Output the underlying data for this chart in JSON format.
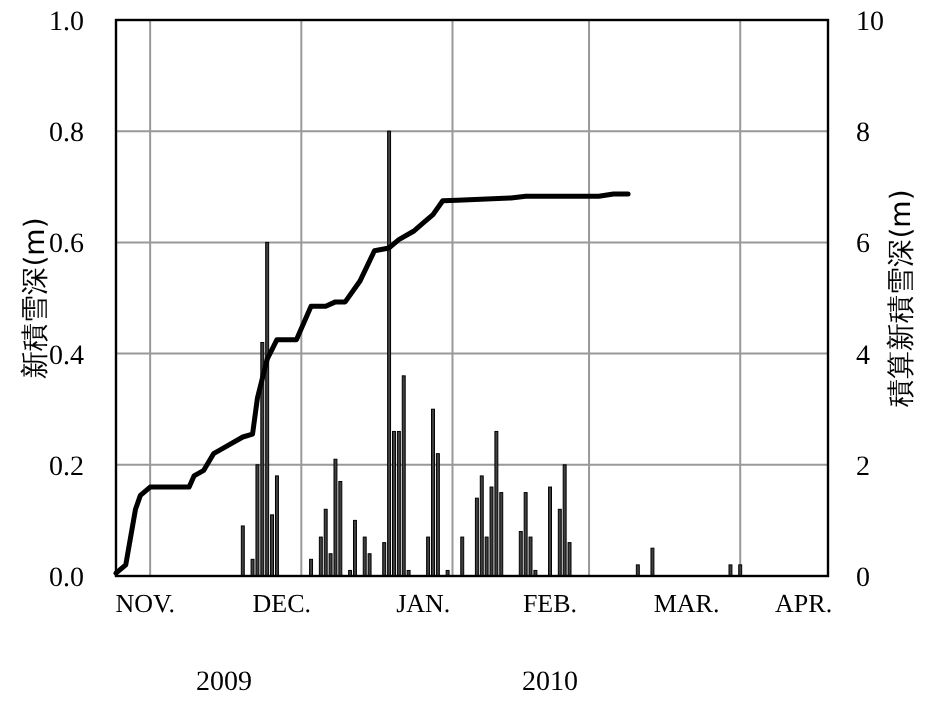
{
  "chart_data": {
    "type": "bar",
    "ylabel": "新積雪深(m)",
    "y2label": "積算新積雪深(m)",
    "annotations": [
      "2009",
      "2010"
    ],
    "xlim": [
      "2009-11-24",
      "2010-04-19"
    ],
    "xticks": [
      {
        "value": "2009-11-30",
        "label": "NOV."
      },
      {
        "value": "2009-12-28",
        "label": "DEC."
      },
      {
        "value": "2010-01-26",
        "label": "JAN."
      },
      {
        "value": "2010-02-21",
        "label": "FEB."
      },
      {
        "value": "2010-03-21",
        "label": "MAR."
      },
      {
        "value": "2010-04-14",
        "label": "APR."
      },
      {
        "value": "2009-12-01",
        "label": null
      },
      {
        "value": "2010-01-01",
        "label": null
      },
      {
        "value": "2010-02-01",
        "label": null
      },
      {
        "value": "2010-03-01",
        "label": null
      },
      {
        "value": "2010-04-01",
        "label": null
      }
    ],
    "ylim": [
      0,
      1
    ],
    "yticks": [
      {
        "value": 0,
        "label": "0.0"
      },
      {
        "value": 0.2,
        "label": "0.2"
      },
      {
        "value": 0.4,
        "label": "0.4"
      },
      {
        "value": 0.6,
        "label": "0.6"
      },
      {
        "value": 0.8,
        "label": "0.8"
      },
      {
        "value": 1,
        "label": "1.0"
      }
    ],
    "y2lim": [
      0,
      10
    ],
    "y2ticks": [
      0,
      2,
      4,
      6,
      8,
      10
    ],
    "grid": true,
    "series": [
      {
        "color": "#404040",
        "x": [
          "2009-12-20",
          "2009-12-22",
          "2009-12-23",
          "2009-12-24",
          "2009-12-25",
          "2009-12-26",
          "2009-12-27",
          "2010-01-03",
          "2010-01-05",
          "2010-01-06",
          "2010-01-07",
          "2010-01-08",
          "2010-01-09",
          "2010-01-11",
          "2010-01-12",
          "2010-01-14",
          "2010-01-15",
          "2010-01-18",
          "2010-01-19",
          "2010-01-20",
          "2010-01-21",
          "2010-01-22",
          "2010-01-23",
          "2010-01-27",
          "2010-01-28",
          "2010-01-29",
          "2010-01-31",
          "2010-02-03",
          "2010-02-06",
          "2010-02-07",
          "2010-02-08",
          "2010-02-09",
          "2010-02-10",
          "2010-02-11",
          "2010-02-15",
          "2010-02-16",
          "2010-02-17",
          "2010-02-18",
          "2010-02-21",
          "2010-02-23",
          "2010-02-24",
          "2010-02-25",
          "2010-03-11",
          "2010-03-14",
          "2010-03-30",
          "2010-04-01"
        ],
        "values": [
          0.09,
          0.03,
          0.2,
          0.42,
          0.6,
          0.11,
          0.18,
          0.03,
          0.07,
          0.12,
          0.04,
          0.21,
          0.17,
          0.01,
          0.1,
          0.07,
          0.04,
          0.06,
          0.8,
          0.26,
          0.26,
          0.36,
          0.01,
          0.07,
          0.3,
          0.22,
          0.01,
          0.07,
          0.14,
          0.18,
          0.07,
          0.16,
          0.26,
          0.15,
          0.08,
          0.15,
          0.07,
          0.01,
          0.16,
          0.12,
          0.2,
          0.06,
          0.02,
          0.05,
          0.02,
          0.02
        ]
      },
      {
        "type": "line",
        "axis": "y2",
        "color": "#000000",
        "x": [
          "2009-11-24",
          "2009-11-26",
          "2009-11-28",
          "2009-11-29",
          "2009-12-01",
          "2009-12-09",
          "2009-12-10",
          "2009-12-12",
          "2009-12-14",
          "2009-12-16",
          "2009-12-20",
          "2009-12-22",
          "2009-12-23",
          "2009-12-25",
          "2009-12-27",
          "2009-12-31",
          "2010-01-03",
          "2010-01-06",
          "2010-01-08",
          "2010-01-10",
          "2010-01-13",
          "2010-01-16",
          "2010-01-19",
          "2010-01-21",
          "2010-01-24",
          "2010-01-26",
          "2010-01-28",
          "2010-01-30",
          "2010-02-02",
          "2010-02-13",
          "2010-02-16",
          "2010-03-03",
          "2010-03-06",
          "2010-03-09"
        ],
        "values": [
          0.05,
          0.2,
          1.2,
          1.45,
          1.6,
          1.6,
          1.8,
          1.9,
          2.2,
          2.3,
          2.5,
          2.55,
          3.2,
          3.9,
          4.25,
          4.25,
          4.85,
          4.85,
          4.93,
          4.93,
          5.3,
          5.85,
          5.9,
          6.05,
          6.2,
          6.35,
          6.5,
          6.75,
          6.76,
          6.8,
          6.83,
          6.83,
          6.87,
          6.87
        ]
      }
    ]
  }
}
